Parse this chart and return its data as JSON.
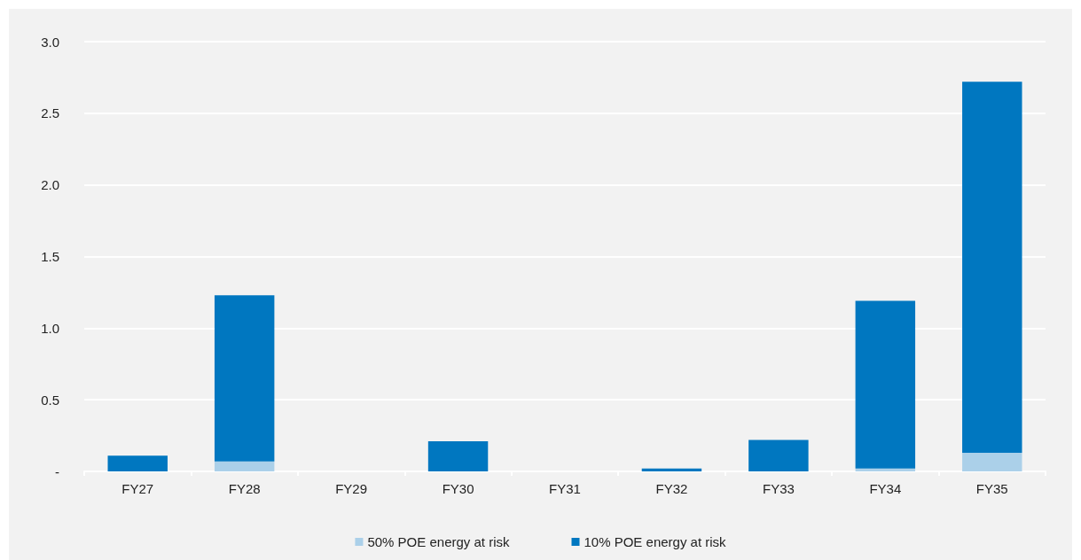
{
  "chart_data": {
    "type": "bar",
    "stacked": true,
    "categories": [
      "FY27",
      "FY28",
      "FY29",
      "FY30",
      "FY31",
      "FY32",
      "FY33",
      "FY34",
      "FY35"
    ],
    "series": [
      {
        "name": "50% POE energy at risk",
        "color": "#abd0e9",
        "values": [
          0,
          0.07,
          0,
          0,
          0,
          0,
          0,
          0.02,
          0.13
        ]
      },
      {
        "name": "10% POE energy at risk",
        "color": "#0077c0",
        "values": [
          0.11,
          1.16,
          0,
          0.21,
          0,
          0.02,
          0.22,
          1.17,
          2.59
        ]
      }
    ],
    "ylim": [
      0,
      3
    ],
    "yticks": [
      {
        "value": 0,
        "label": "-"
      },
      {
        "value": 0.5,
        "label": "0.5"
      },
      {
        "value": 1,
        "label": "1.0"
      },
      {
        "value": 1.5,
        "label": "1.5"
      },
      {
        "value": 2,
        "label": "2.0"
      },
      {
        "value": 2.5,
        "label": "2.5"
      },
      {
        "value": 3,
        "label": "3.0"
      }
    ],
    "grid": "y",
    "legend": "bottom"
  }
}
